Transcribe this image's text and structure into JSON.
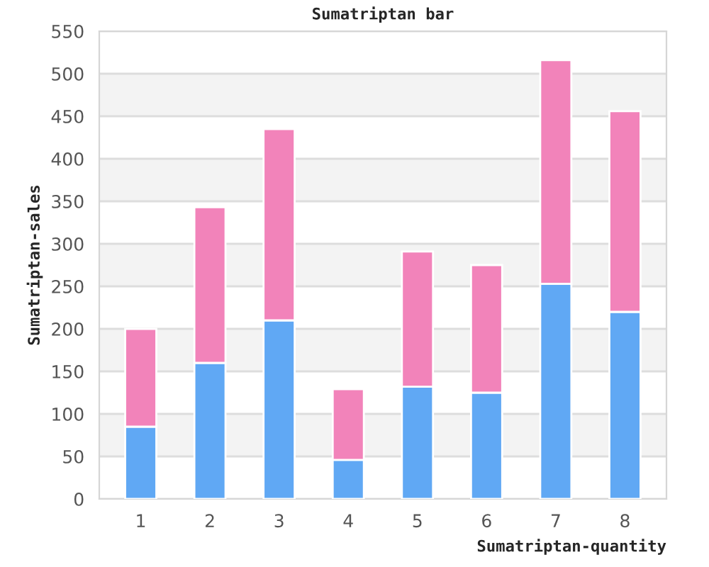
{
  "chart_data": {
    "type": "bar",
    "title": "Sumatriptan bar",
    "xlabel": "Sumatriptan-quantity",
    "ylabel": "Sumatriptan-sales",
    "categories": [
      "1",
      "2",
      "3",
      "4",
      "5",
      "6",
      "7",
      "8"
    ],
    "stacked": true,
    "series": [
      {
        "color": "#60a8f4",
        "values": [
          85,
          160,
          210,
          46,
          132,
          125,
          253,
          220
        ]
      },
      {
        "color": "#f283ba",
        "values": [
          115,
          183,
          225,
          83,
          159,
          150,
          263,
          236
        ]
      }
    ],
    "ylim": [
      0,
      550
    ],
    "yticks": [
      0,
      50,
      100,
      150,
      200,
      250,
      300,
      350,
      400,
      450,
      500,
      550
    ],
    "grid": "y",
    "bands": [
      {
        "axis": "y",
        "from": 50,
        "to": 100,
        "color": "#f3f3f3"
      },
      {
        "axis": "y",
        "from": 150,
        "to": 200,
        "color": "#f3f3f3"
      },
      {
        "axis": "y",
        "from": 250,
        "to": 300,
        "color": "#f3f3f3"
      },
      {
        "axis": "y",
        "from": 350,
        "to": 400,
        "color": "#f3f3f3"
      },
      {
        "axis": "y",
        "from": 450,
        "to": 500,
        "color": "#f3f3f3"
      }
    ]
  }
}
